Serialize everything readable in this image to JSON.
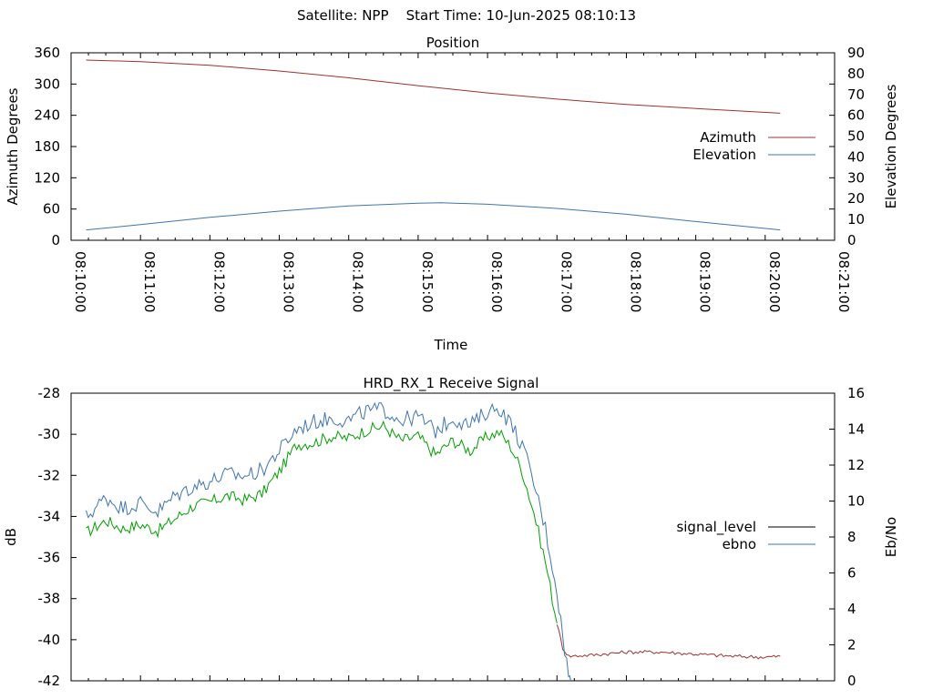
{
  "figure_title": "Satellite: NPP    Start Time: 10-Jun-2025 08:10:13",
  "chart_data": [
    {
      "type": "line",
      "title": "Position",
      "xlabel": "Time",
      "ylabel": "Azimuth Degrees",
      "y2label": "Elevation Degrees",
      "x_ticks": [
        "08:10:00",
        "08:11:00",
        "08:12:00",
        "08:13:00",
        "08:14:00",
        "08:15:00",
        "08:16:00",
        "08:17:00",
        "08:18:00",
        "08:19:00",
        "08:20:00",
        "08:21:00"
      ],
      "xlim": [
        "08:10:00",
        "08:21:00"
      ],
      "ylim": [
        0,
        360
      ],
      "y_ticks": [
        0,
        60,
        120,
        180,
        240,
        300,
        360
      ],
      "y2lim": [
        0,
        90
      ],
      "y2_ticks": [
        0,
        10,
        20,
        30,
        40,
        50,
        60,
        70,
        80,
        90
      ],
      "legend_position": "right",
      "series": [
        {
          "name": "Azimuth",
          "axis": "y",
          "color": "#a03030",
          "points": [
            [
              "08:10:13",
              346
            ],
            [
              "08:11:00",
              343
            ],
            [
              "08:12:00",
              336
            ],
            [
              "08:13:00",
              325
            ],
            [
              "08:14:00",
              312
            ],
            [
              "08:15:00",
              297
            ],
            [
              "08:16:00",
              283
            ],
            [
              "08:17:00",
              271
            ],
            [
              "08:18:00",
              261
            ],
            [
              "08:19:00",
              253
            ],
            [
              "08:20:13",
              244
            ]
          ]
        },
        {
          "name": "Elevation",
          "axis": "y2",
          "color": "#3f75b0",
          "points": [
            [
              "08:10:13",
              5
            ],
            [
              "08:11:00",
              7.5
            ],
            [
              "08:12:00",
              11
            ],
            [
              "08:13:00",
              14
            ],
            [
              "08:14:00",
              16.5
            ],
            [
              "08:15:00",
              17.8
            ],
            [
              "08:15:20",
              18
            ],
            [
              "08:16:00",
              17.3
            ],
            [
              "08:17:00",
              15.3
            ],
            [
              "08:18:00",
              12.5
            ],
            [
              "08:19:00",
              9
            ],
            [
              "08:20:13",
              5
            ]
          ]
        }
      ]
    },
    {
      "type": "line",
      "title": "HRD_RX_1 Receive Signal",
      "xlabel": "",
      "ylabel": "dB",
      "y2label": "Eb/No",
      "xlim": [
        "08:10:00",
        "08:21:00"
      ],
      "ylim": [
        -42,
        -28
      ],
      "y_ticks": [
        -42,
        -40,
        -38,
        -36,
        -34,
        -32,
        -30,
        -28
      ],
      "y2lim": [
        0,
        16
      ],
      "y2_ticks": [
        0,
        2,
        4,
        6,
        8,
        10,
        12,
        14,
        16
      ],
      "legend_position": "right",
      "legend": [
        {
          "name": "signal_level",
          "color": "#000000"
        },
        {
          "name": "ebno",
          "color": "#3f75b0"
        }
      ],
      "series": [
        {
          "name": "signal_level",
          "axis": "y",
          "segments": [
            {
              "color": "#00a000",
              "points": [
                [
                  "08:10:13",
                  -34.8
                ],
                [
                  "08:10:30",
                  -34.2
                ],
                [
                  "08:10:45",
                  -34.6
                ],
                [
                  "08:11:00",
                  -34.4
                ],
                [
                  "08:11:15",
                  -34.7
                ],
                [
                  "08:11:30",
                  -34.1
                ],
                [
                  "08:11:45",
                  -33.5
                ],
                [
                  "08:12:00",
                  -33.3
                ],
                [
                  "08:12:15",
                  -33.0
                ],
                [
                  "08:12:30",
                  -33.2
                ],
                [
                  "08:12:45",
                  -32.9
                ],
                [
                  "08:13:00",
                  -31.8
                ],
                [
                  "08:13:15",
                  -30.5
                ],
                [
                  "08:13:30",
                  -30.4
                ],
                [
                  "08:13:45",
                  -30.1
                ],
                [
                  "08:14:00",
                  -30.2
                ],
                [
                  "08:14:15",
                  -29.8
                ],
                [
                  "08:14:30",
                  -29.6
                ],
                [
                  "08:14:45",
                  -30.3
                ],
                [
                  "08:15:00",
                  -30.1
                ],
                [
                  "08:15:15",
                  -31.0
                ],
                [
                  "08:15:30",
                  -30.3
                ],
                [
                  "08:15:45",
                  -30.8
                ],
                [
                  "08:16:00",
                  -30.1
                ],
                [
                  "08:16:10",
                  -29.9
                ],
                [
                  "08:16:20",
                  -30.6
                ],
                [
                  "08:16:30",
                  -31.8
                ],
                [
                  "08:16:40",
                  -33.8
                ],
                [
                  "08:16:50",
                  -36.2
                ],
                [
                  "08:17:00",
                  -39.2
                ]
              ]
            },
            {
              "color": "#a03030",
              "points": [
                [
                  "08:17:00",
                  -39.2
                ],
                [
                  "08:17:05",
                  -40.4
                ],
                [
                  "08:17:10",
                  -40.8
                ],
                [
                  "08:17:30",
                  -40.75
                ],
                [
                  "08:18:00",
                  -40.6
                ],
                [
                  "08:18:30",
                  -40.6
                ],
                [
                  "08:19:00",
                  -40.7
                ],
                [
                  "08:19:30",
                  -40.8
                ],
                [
                  "08:20:00",
                  -40.85
                ],
                [
                  "08:20:13",
                  -40.8
                ]
              ]
            }
          ]
        },
        {
          "name": "ebno",
          "axis": "y2",
          "color": "#3f75b0",
          "points": [
            [
              "08:10:13",
              9.1
            ],
            [
              "08:10:30",
              10.2
            ],
            [
              "08:10:45",
              9.6
            ],
            [
              "08:11:00",
              9.9
            ],
            [
              "08:11:15",
              9.4
            ],
            [
              "08:11:30",
              10.3
            ],
            [
              "08:11:45",
              10.8
            ],
            [
              "08:12:00",
              11.1
            ],
            [
              "08:12:15",
              11.5
            ],
            [
              "08:12:30",
              11.4
            ],
            [
              "08:12:45",
              11.7
            ],
            [
              "08:13:00",
              12.8
            ],
            [
              "08:13:15",
              14.0
            ],
            [
              "08:13:30",
              14.4
            ],
            [
              "08:13:45",
              14.6
            ],
            [
              "08:14:00",
              14.5
            ],
            [
              "08:14:15",
              15.0
            ],
            [
              "08:14:30",
              15.1
            ],
            [
              "08:14:45",
              14.5
            ],
            [
              "08:15:00",
              14.7
            ],
            [
              "08:15:15",
              13.9
            ],
            [
              "08:15:30",
              14.6
            ],
            [
              "08:15:45",
              14.2
            ],
            [
              "08:16:00",
              15.0
            ],
            [
              "08:16:10",
              15.2
            ],
            [
              "08:16:20",
              14.3
            ],
            [
              "08:16:30",
              13.1
            ],
            [
              "08:16:40",
              11.0
            ],
            [
              "08:16:50",
              8.5
            ],
            [
              "08:17:00",
              5.0
            ],
            [
              "08:17:05",
              2.5
            ],
            [
              "08:17:10",
              0.3
            ],
            [
              "08:17:12",
              0
            ]
          ]
        }
      ]
    }
  ]
}
